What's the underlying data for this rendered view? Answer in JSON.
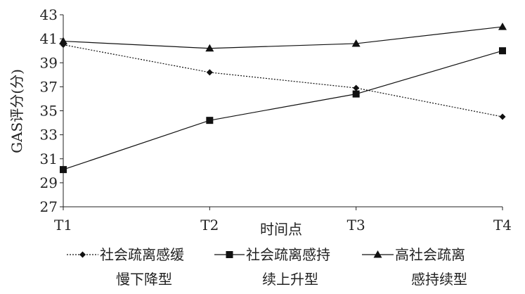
{
  "chart_data": {
    "type": "line",
    "xlabel": "时间点",
    "ylabel": "GAS评分(分)",
    "categories": [
      "T1",
      "T2",
      "T3",
      "T4"
    ],
    "yticks": [
      27,
      29,
      31,
      33,
      35,
      37,
      39,
      41,
      43
    ],
    "ylim": [
      27,
      43
    ],
    "grid": false,
    "legend_position": "bottom",
    "series": [
      {
        "name": "社会疏离感缓慢下降型",
        "name_lines": [
          "社会疏离感缓",
          "慢下降型"
        ],
        "values": [
          40.5,
          38.2,
          36.9,
          34.5
        ],
        "marker": "diamond",
        "line_style": "dotted",
        "color": "#111111"
      },
      {
        "name": "社会疏离感持续上升型",
        "name_lines": [
          "社会疏离感持",
          "续上升型"
        ],
        "values": [
          30.1,
          34.2,
          36.4,
          40.0
        ],
        "marker": "square",
        "line_style": "solid",
        "color": "#111111"
      },
      {
        "name": "高社会疏离感持续型",
        "name_lines": [
          "高社会疏离",
          "感持续型"
        ],
        "values": [
          40.8,
          40.2,
          40.6,
          42.0
        ],
        "marker": "triangle",
        "line_style": "solid",
        "color": "#111111"
      }
    ]
  }
}
